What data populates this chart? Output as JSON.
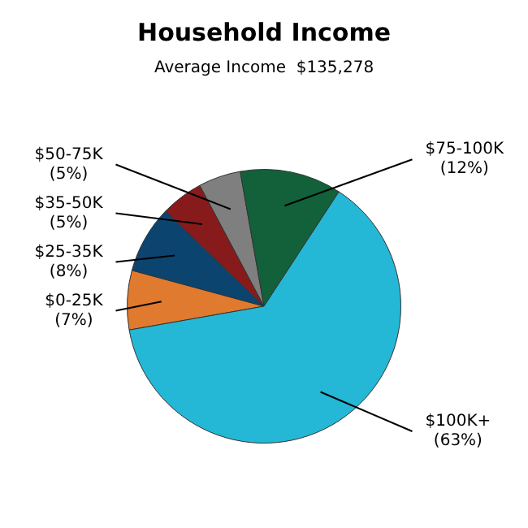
{
  "chart_data": {
    "type": "pie",
    "title": "Household Income",
    "subtitle": "Average Income  $135,278",
    "categories": [
      "$0-25K",
      "$25-35K",
      "$35-50K",
      "$50-75K",
      "$75-100K",
      "$100K+"
    ],
    "values": [
      7,
      8,
      5,
      5,
      12,
      63
    ],
    "value_labels": [
      "(7%)",
      "(8%)",
      "(5%)",
      "(5%)",
      "(12%)",
      "(63%)"
    ],
    "colors": [
      "#e07a2e",
      "#0c4470",
      "#871b1b",
      "#7f7f7f",
      "#12613a",
      "#25b7d6"
    ],
    "legend": false
  }
}
